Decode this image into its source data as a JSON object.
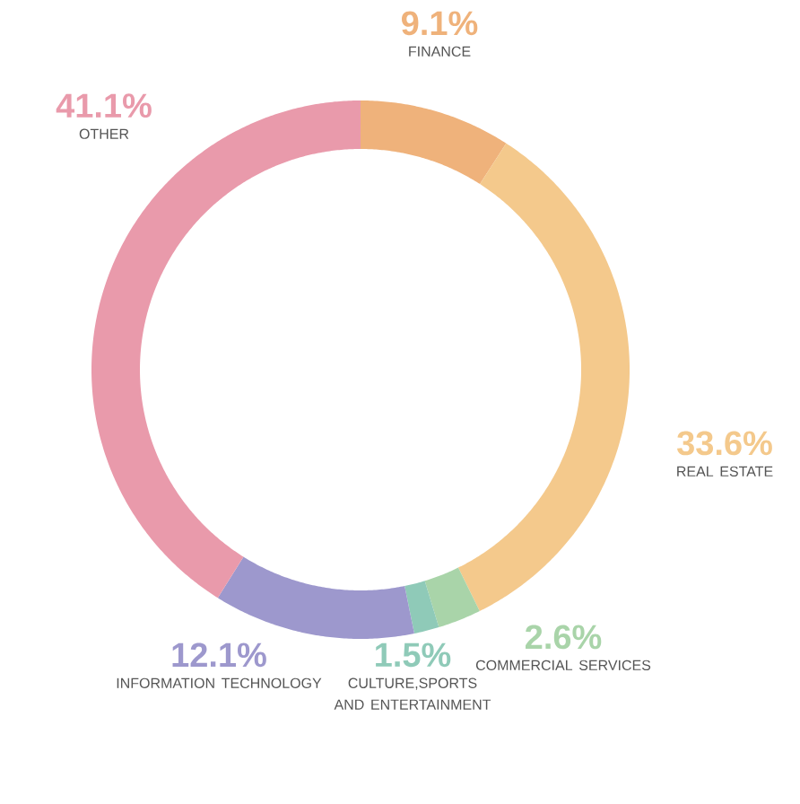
{
  "chart_data": {
    "type": "donut",
    "categories": [
      "FINANCE",
      "REAL ESTATE",
      "COMMERCIAL SERVICES",
      "CULTURE,SPORTS AND ENTERTAINMENT",
      "INFORMATION TECHNOLOGY",
      "OTHER"
    ],
    "values": [
      9.1,
      33.6,
      2.6,
      1.5,
      12.1,
      41.1
    ],
    "colors": [
      "#efb27b",
      "#f4c98c",
      "#a9d4a9",
      "#8fcab8",
      "#9d98cd",
      "#e99aab"
    ],
    "value_labels": [
      "9.1%",
      "33.6%",
      "2.6%",
      "1.5%",
      "12.1%",
      "41.1%"
    ]
  }
}
